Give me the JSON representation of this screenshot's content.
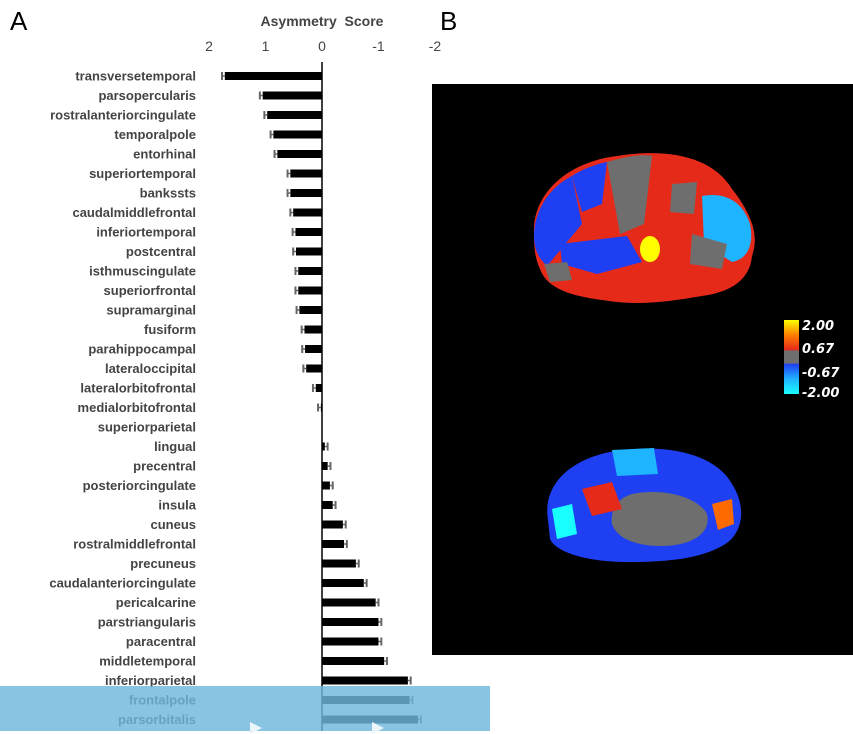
{
  "panels": {
    "a": "A",
    "b": "B"
  },
  "colorbar": {
    "labels": [
      "2.00",
      "0.67",
      "-0.67",
      "-2.00"
    ],
    "colors": {
      "yellow": "#ffff00",
      "orange": "#ff6a00",
      "red": "#e62a1a",
      "gray": "#6e6e6e",
      "blue": "#1f3ff2",
      "lightblue": "#1fb4ff",
      "cyan": "#19ffff"
    }
  },
  "chart_data": {
    "type": "bar",
    "orientation": "horizontal",
    "title": "Asymmetry  Score",
    "x_ticks": [
      "2",
      "1",
      "0",
      "-1",
      "-2"
    ],
    "xlim": [
      2,
      -2
    ],
    "categories": [
      "transversetemporal",
      "parsopercularis",
      "rostralanteriorcingulate",
      "temporalpole",
      "entorhinal",
      "superiortemporal",
      "bankssts",
      "caudalmiddlefrontal",
      "inferiortemporal",
      "postcentral",
      "isthmuscingulate",
      "superiorfrontal",
      "supramarginal",
      "fusiform",
      "parahippocampal",
      "lateraloccipital",
      "lateralorbitofrontal",
      "medialorbitofrontal",
      "superiorparietal",
      "lingual",
      "precentral",
      "posteriorcingulate",
      "insula",
      "cuneus",
      "rostralmiddlefrontal",
      "precuneus",
      "caudalanteriorcingulate",
      "pericalcarine",
      "parstriangularis",
      "paracentral",
      "middletemporal",
      "inferiorparietal",
      "frontalpole",
      "parsorbitalis"
    ],
    "values": [
      1.72,
      1.05,
      0.97,
      0.86,
      0.79,
      0.56,
      0.56,
      0.51,
      0.47,
      0.46,
      0.42,
      0.42,
      0.4,
      0.31,
      0.3,
      0.28,
      0.11,
      0.02,
      0.0,
      -0.05,
      -0.1,
      -0.14,
      -0.19,
      -0.37,
      -0.39,
      -0.6,
      -0.74,
      -0.95,
      -1.0,
      -1.0,
      -1.1,
      -1.52,
      -1.55,
      -1.7
    ],
    "errors": [
      0.05,
      0.05,
      0.05,
      0.05,
      0.05,
      0.05,
      0.05,
      0.05,
      0.05,
      0.05,
      0.05,
      0.05,
      0.05,
      0.05,
      0.05,
      0.05,
      0.05,
      0.05,
      0.0,
      0.05,
      0.05,
      0.05,
      0.05,
      0.05,
      0.05,
      0.05,
      0.05,
      0.05,
      0.05,
      0.05,
      0.05,
      0.05,
      0.05,
      0.05
    ],
    "bar_color": "#000000",
    "error_color": "#666666"
  }
}
